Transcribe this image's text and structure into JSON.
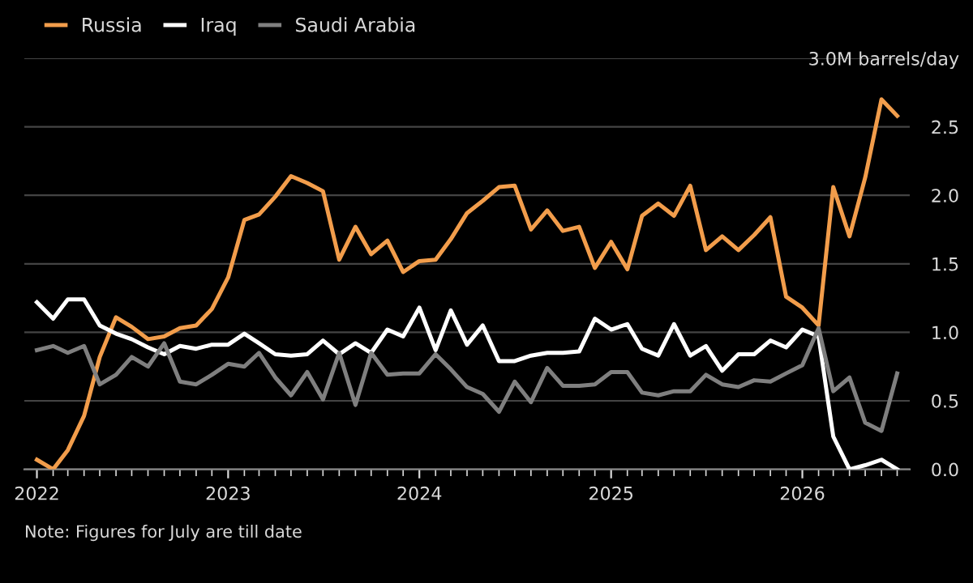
{
  "chart_data": {
    "type": "line",
    "x": [
      "2022-01",
      "2022-02",
      "2022-03",
      "2022-04",
      "2022-05",
      "2022-06",
      "2022-07",
      "2022-08",
      "2022-09",
      "2022-10",
      "2022-11",
      "2022-12",
      "2023-01",
      "2023-02",
      "2023-03",
      "2023-04",
      "2023-05",
      "2023-06",
      "2023-07",
      "2023-08",
      "2023-09",
      "2023-10",
      "2023-11",
      "2023-12",
      "2024-01",
      "2024-02",
      "2024-03",
      "2024-04",
      "2024-05",
      "2024-06",
      "2024-07",
      "2024-08",
      "2024-09",
      "2024-10",
      "2024-11",
      "2024-12",
      "2025-01",
      "2025-02",
      "2025-03",
      "2025-04",
      "2025-05",
      "2025-06",
      "2025-07",
      "2025-08",
      "2025-09",
      "2025-10",
      "2025-11",
      "2025-12",
      "2026-01",
      "2026-02",
      "2026-03",
      "2026-04",
      "2026-05",
      "2026-06",
      "2026-07"
    ],
    "series": [
      {
        "name": "Russia",
        "color": "#f29d4b",
        "values": [
          0.07,
          0,
          0.14,
          0.39,
          0.82,
          1.11,
          1.04,
          0.95,
          0.97,
          1.03,
          1.05,
          1.17,
          1.4,
          1.82,
          1.86,
          1.99,
          2.14,
          2.09,
          2.03,
          1.53,
          1.77,
          1.57,
          1.67,
          1.44,
          1.52,
          1.53,
          1.68,
          1.87,
          1.96,
          2.06,
          2.07,
          1.75,
          1.89,
          1.74,
          1.77,
          1.47,
          1.66,
          1.46,
          1.85,
          1.94,
          1.85,
          2.07,
          1.6,
          1.7,
          1.6,
          1.71,
          1.84,
          1.26,
          1.18,
          1.05,
          2.06,
          1.7,
          2.13,
          2.7,
          2.58
        ]
      },
      {
        "name": "Iraq",
        "color": "#ffffff",
        "values": [
          1.22,
          1.1,
          1.24,
          1.24,
          1.05,
          0.99,
          0.95,
          0.89,
          0.84,
          0.9,
          0.88,
          0.91,
          0.91,
          0.99,
          0.92,
          0.84,
          0.83,
          0.84,
          0.94,
          0.84,
          0.92,
          0.85,
          1.02,
          0.97,
          1.18,
          0.87,
          1.16,
          0.91,
          1.05,
          0.79,
          0.79,
          0.83,
          0.85,
          0.85,
          0.86,
          1.1,
          1.02,
          1.06,
          0.88,
          0.83,
          1.06,
          0.83,
          0.9,
          0.72,
          0.84,
          0.84,
          0.94,
          0.89,
          1.02,
          0.97,
          0.24,
          0,
          0.03,
          0.07,
          0
        ]
      },
      {
        "name": "Saudi Arabia",
        "color": "#7f7f7f",
        "values": [
          0.87,
          0.9,
          0.85,
          0.9,
          0.62,
          0.69,
          0.82,
          0.75,
          0.92,
          0.64,
          0.62,
          0.69,
          0.77,
          0.75,
          0.85,
          0.67,
          0.54,
          0.71,
          0.51,
          0.85,
          0.47,
          0.85,
          0.69,
          0.7,
          0.7,
          0.84,
          0.73,
          0.6,
          0.55,
          0.42,
          0.64,
          0.49,
          0.74,
          0.61,
          0.61,
          0.62,
          0.71,
          0.71,
          0.56,
          0.54,
          0.57,
          0.57,
          0.69,
          0.62,
          0.6,
          0.65,
          0.64,
          0.7,
          0.76,
          1.03,
          0.57,
          0.67,
          0.34,
          0.28,
          0.7
        ]
      }
    ],
    "ylim": [
      0,
      3
    ],
    "yticks": [
      {
        "value": 0,
        "label": "0.0"
      },
      {
        "value": 0.5,
        "label": "0.5"
      },
      {
        "value": 1,
        "label": "1.0"
      },
      {
        "value": 1.5,
        "label": "1.5"
      },
      {
        "value": 2,
        "label": "2.0"
      },
      {
        "value": 2.5,
        "label": "2.5"
      },
      {
        "value": 3,
        "label": "3.0M barrels/day"
      }
    ],
    "xlim": [
      "2021-12-08",
      "2026-07-25"
    ],
    "xticks": [
      {
        "value": "2022-01",
        "label": "2022"
      },
      {
        "value": "2023-01",
        "label": "2023"
      },
      {
        "value": "2024-01",
        "label": "2024"
      },
      {
        "value": "2025-01",
        "label": "2025"
      },
      {
        "value": "2026-01",
        "label": "2026"
      }
    ],
    "grid": "y",
    "legend": "top left",
    "line_style": "solid",
    "marker": "none",
    "annotations": [
      "Note: Figures for July are till date"
    ]
  }
}
